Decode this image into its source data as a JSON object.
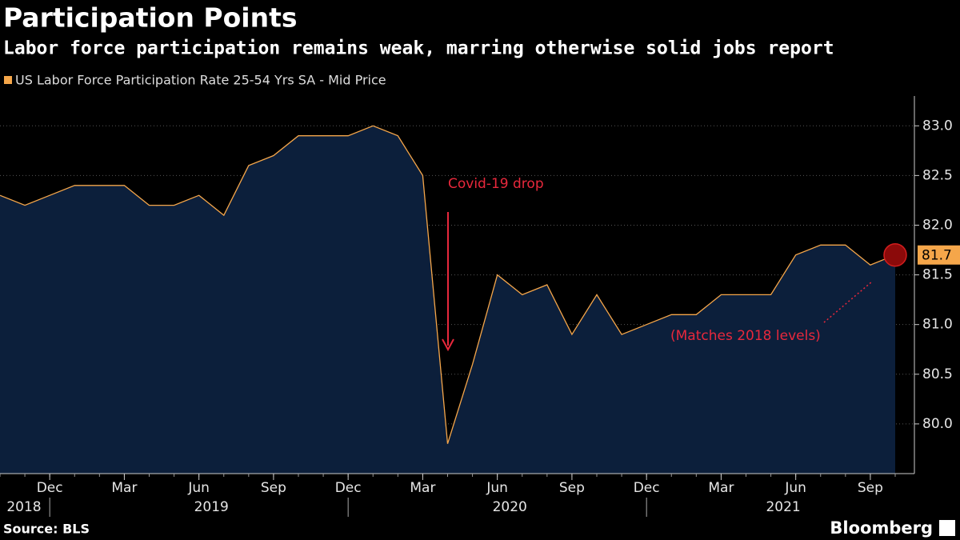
{
  "chart_data": {
    "type": "line",
    "title": "Participation Points",
    "subtitle": "Labor force participation remains weak, marring otherwise solid jobs report",
    "source": "Source: BLS",
    "brand": "Bloomberg",
    "x": [
      "2018-10",
      "2018-11",
      "2018-12",
      "2019-01",
      "2019-02",
      "2019-03",
      "2019-04",
      "2019-05",
      "2019-06",
      "2019-07",
      "2019-08",
      "2019-09",
      "2019-10",
      "2019-11",
      "2019-12",
      "2020-01",
      "2020-02",
      "2020-03",
      "2020-04",
      "2020-05",
      "2020-06",
      "2020-07",
      "2020-08",
      "2020-09",
      "2020-10",
      "2020-11",
      "2020-12",
      "2021-01",
      "2021-02",
      "2021-03",
      "2021-04",
      "2021-05",
      "2021-06",
      "2021-07",
      "2021-08",
      "2021-09",
      "2021-10"
    ],
    "series": [
      {
        "name": "US Labor Force Participation Rate 25-54 Yrs SA - Mid Price",
        "color": "#f5a64a",
        "values": [
          82.3,
          82.2,
          82.3,
          82.4,
          82.4,
          82.4,
          82.2,
          82.2,
          82.3,
          82.1,
          82.6,
          82.7,
          82.9,
          82.9,
          82.9,
          83.0,
          82.9,
          82.5,
          79.8,
          80.6,
          81.5,
          81.3,
          81.4,
          80.9,
          81.3,
          80.9,
          81.0,
          81.1,
          81.1,
          81.3,
          81.3,
          81.3,
          81.7,
          81.8,
          81.8,
          81.6,
          81.7
        ]
      }
    ],
    "ylim": [
      79.5,
      83.3
    ],
    "yticks": [
      {
        "value": 80,
        "label": "80.0"
      },
      {
        "value": 80.5,
        "label": "80.5"
      },
      {
        "value": 81,
        "label": "81.0"
      },
      {
        "value": 81.5,
        "label": "81.5"
      },
      {
        "value": 82,
        "label": "82.0"
      },
      {
        "value": 82.5,
        "label": "82.5"
      },
      {
        "value": 83,
        "label": "83.0"
      }
    ],
    "xticks": [
      {
        "value": "2018-12",
        "label": "Dec"
      },
      {
        "value": "2019-03",
        "label": "Mar"
      },
      {
        "value": "2019-06",
        "label": "Jun"
      },
      {
        "value": "2019-09",
        "label": "Sep"
      },
      {
        "value": "2019-12",
        "label": "Dec"
      },
      {
        "value": "2020-03",
        "label": "Mar"
      },
      {
        "value": "2020-06",
        "label": "Jun"
      },
      {
        "value": "2020-09",
        "label": "Sep"
      },
      {
        "value": "2020-12",
        "label": "Dec"
      },
      {
        "value": "2021-03",
        "label": "Mar"
      },
      {
        "value": "2021-06",
        "label": "Jun"
      },
      {
        "value": "2021-09",
        "label": "Sep"
      }
    ],
    "year_labels": [
      "2018",
      "2019",
      "2020",
      "2021"
    ],
    "annotations": [
      {
        "text": "Covid-19 drop"
      },
      {
        "text": "(Matches 2018 levels)"
      }
    ],
    "fill_color": "#0c1f3b",
    "grid": true
  }
}
